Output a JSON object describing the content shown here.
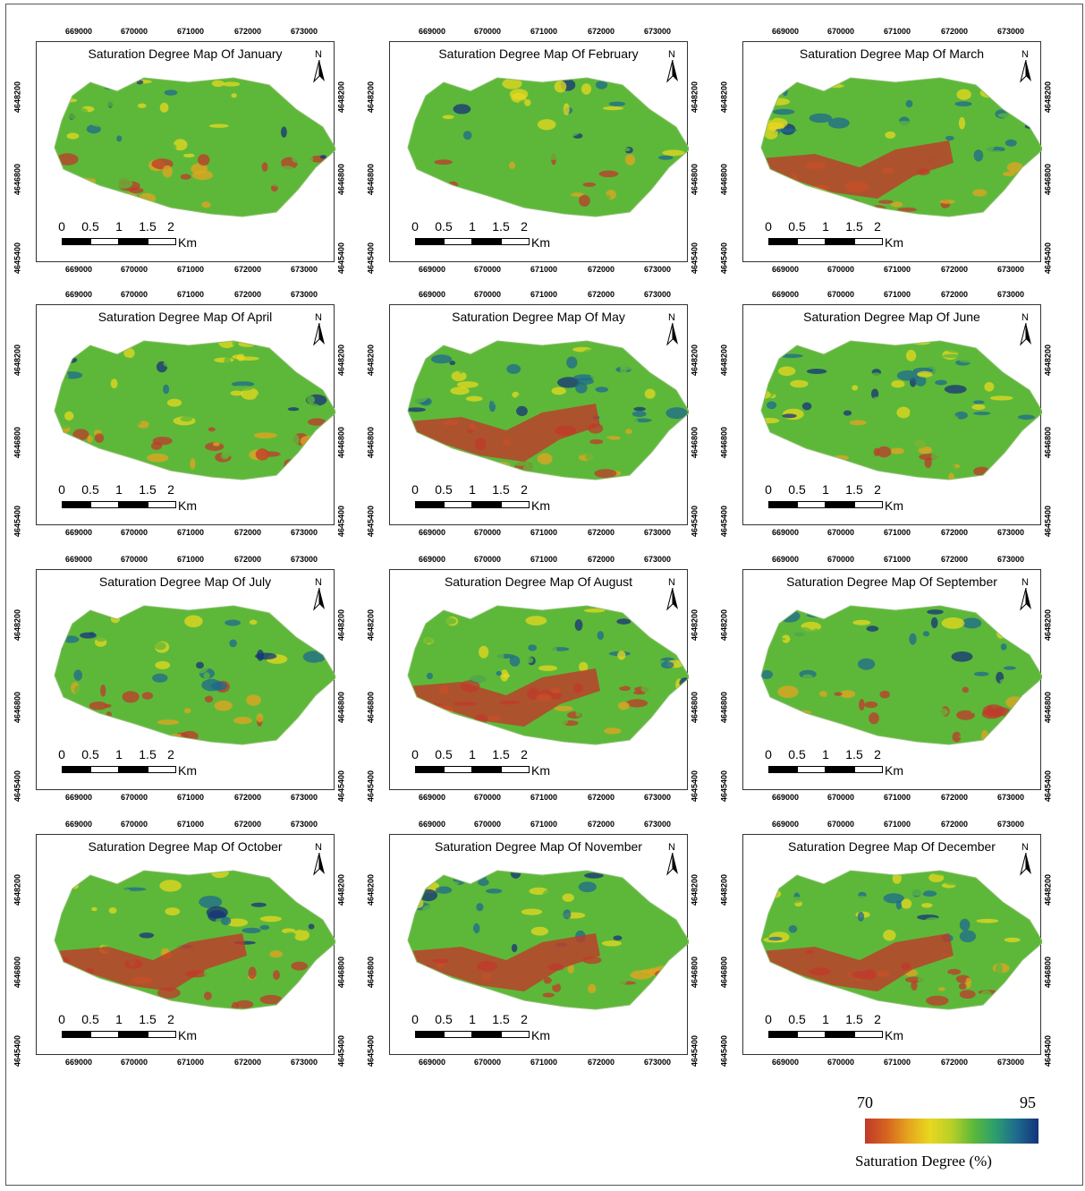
{
  "maps": [
    {
      "title": "Saturation Degree Map Of January"
    },
    {
      "title": "Saturation Degree Map Of February"
    },
    {
      "title": "Saturation Degree Map Of March"
    },
    {
      "title": "Saturation Degree Map Of April"
    },
    {
      "title": "Saturation Degree Map Of May"
    },
    {
      "title": "Saturation Degree Map Of June"
    },
    {
      "title": "Saturation Degree Map Of July"
    },
    {
      "title": "Saturation Degree Map Of August"
    },
    {
      "title": "Saturation Degree Map Of September"
    },
    {
      "title": "Saturation Degree Map Of October"
    },
    {
      "title": "Saturation Degree Map Of November"
    },
    {
      "title": "Saturation Degree Map Of December"
    }
  ],
  "x_ticks": [
    "669000",
    "670000",
    "671000",
    "672000",
    "673000"
  ],
  "y_ticks": [
    "4648200",
    "4646800",
    "4645400"
  ],
  "north_label": "N",
  "scale_bar": {
    "labels": [
      "0",
      "0.5",
      "1",
      "1.5",
      "2"
    ],
    "unit": "Km"
  },
  "legend": {
    "min": "70",
    "max": "95",
    "title": "Saturation Degree (%)",
    "colors": [
      "#c0392b",
      "#e6a41f",
      "#e8d81f",
      "#5db83a",
      "#1d6a8f",
      "#15337a"
    ]
  }
}
